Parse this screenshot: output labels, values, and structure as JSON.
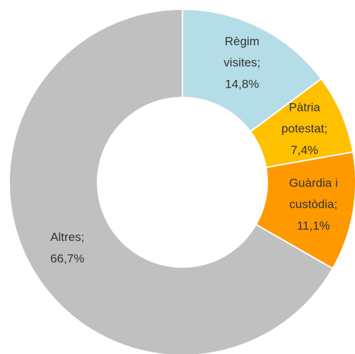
{
  "chart_data": {
    "type": "donut",
    "categories": [
      "Règim visites;",
      "Pàtria potestat;",
      "Guàrdia i custòdia;",
      "Altres;"
    ],
    "values": [
      14.8,
      7.4,
      11.1,
      66.7
    ],
    "value_labels": [
      "14,8%",
      "7,4%",
      "11,1%",
      "66,7%"
    ],
    "colors": [
      "#b5dde8",
      "#ffc000",
      "#ff9900",
      "#c0c0c0"
    ]
  }
}
